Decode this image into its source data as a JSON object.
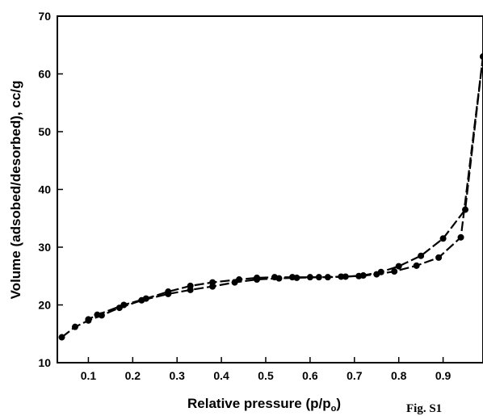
{
  "chart_data": {
    "type": "line",
    "xlabel_main": "Relative pressure (p/p",
    "xlabel_sub": "o",
    "xlabel_end": ")",
    "ylabel": "Volume (adsobed/desorbed), cc/g",
    "figure_label": "Fig. S1",
    "xlim": [
      0.03,
      0.99
    ],
    "ylim": [
      10,
      70
    ],
    "xticks": [
      0.1,
      0.2,
      0.3,
      0.4,
      0.5,
      0.6,
      0.7,
      0.8,
      0.9
    ],
    "xtick_labels": [
      "0.1",
      "0.2",
      "0.3",
      "0.4",
      "0.5",
      "0.6",
      "0.7",
      "0.8",
      "0.9"
    ],
    "yticks": [
      10,
      20,
      30,
      40,
      50,
      60,
      70
    ],
    "ytick_labels": [
      "10",
      "20",
      "30",
      "40",
      "50",
      "60",
      "70"
    ],
    "grid": false,
    "series": [
      {
        "x": [
          0.04,
          0.07,
          0.1,
          0.13,
          0.17,
          0.22,
          0.28,
          0.33,
          0.38,
          0.43,
          0.48,
          0.53,
          0.57,
          0.62,
          0.67,
          0.71,
          0.75,
          0.79,
          0.84,
          0.89,
          0.94,
          0.99
        ],
        "values": [
          14.4,
          16.2,
          17.3,
          18.2,
          19.5,
          20.8,
          21.9,
          22.6,
          23.2,
          23.9,
          24.4,
          24.6,
          24.7,
          24.8,
          24.9,
          25.0,
          25.3,
          25.8,
          26.8,
          28.2,
          31.7,
          63.0
        ]
      },
      {
        "x": [
          0.99,
          0.95,
          0.9,
          0.85,
          0.8,
          0.76,
          0.72,
          0.68,
          0.64,
          0.6,
          0.56,
          0.52,
          0.48,
          0.44,
          0.38,
          0.33,
          0.28,
          0.23,
          0.18,
          0.12,
          0.1
        ],
        "values": [
          63.0,
          36.5,
          31.5,
          28.5,
          26.7,
          25.7,
          25.1,
          24.9,
          24.8,
          24.8,
          24.8,
          24.8,
          24.7,
          24.4,
          23.9,
          23.3,
          22.3,
          21.1,
          20.0,
          18.3,
          17.5
        ]
      }
    ]
  }
}
